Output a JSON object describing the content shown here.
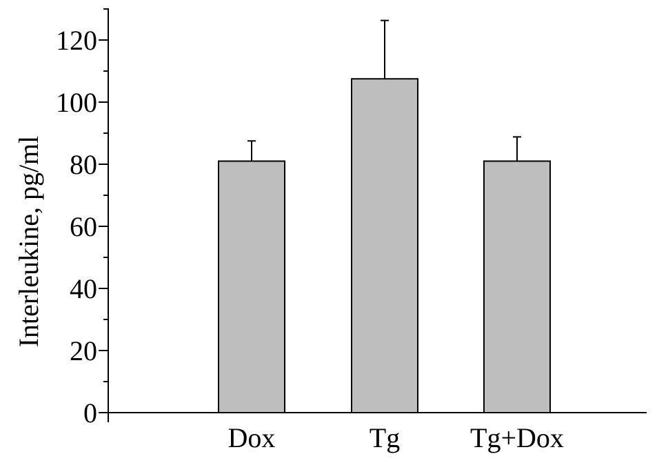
{
  "chart_data": {
    "type": "bar",
    "title": "",
    "xlabel": "",
    "ylabel": "Interleukine, pg/ml",
    "categories": [
      "Dox",
      "Tg",
      "Tg+Dox"
    ],
    "values": [
      81,
      107.5,
      81
    ],
    "error_upper": [
      87.5,
      126.3,
      88.8
    ],
    "ylim": [
      0,
      130
    ],
    "yticks": [
      0,
      20,
      40,
      60,
      80,
      100,
      120
    ],
    "yticks_minor": [
      10,
      30,
      50,
      70,
      90,
      110,
      130
    ],
    "bar_color": "#bebebe",
    "edge_color": "#000000",
    "grid": false,
    "legend": "none"
  }
}
